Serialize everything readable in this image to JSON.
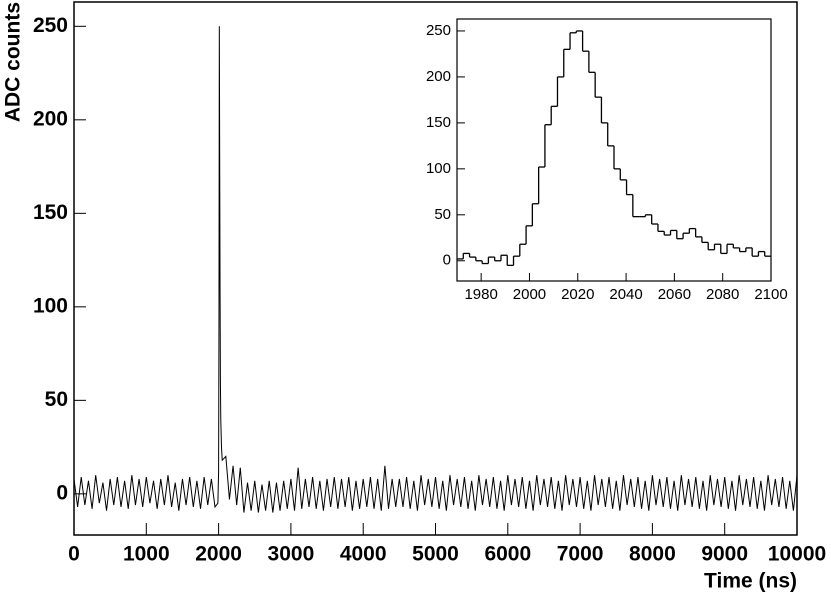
{
  "chart_data": [
    {
      "type": "line",
      "x_label": "Time (ns)",
      "y_label": "ADC counts",
      "color": "#000000",
      "xlim": [
        0,
        10000
      ],
      "ylim": [
        -22,
        263
      ],
      "xticks": [
        0,
        1000,
        2000,
        3000,
        4000,
        5000,
        6000,
        7000,
        8000,
        9000,
        10000
      ],
      "yticks": [
        0,
        50,
        100,
        150,
        200,
        250
      ],
      "x": [
        0,
        50,
        100,
        150,
        200,
        250,
        300,
        350,
        400,
        450,
        500,
        550,
        600,
        650,
        700,
        750,
        800,
        850,
        900,
        950,
        1000,
        1050,
        1100,
        1150,
        1200,
        1250,
        1300,
        1350,
        1400,
        1450,
        1500,
        1550,
        1600,
        1650,
        1700,
        1750,
        1800,
        1850,
        1900,
        1950,
        1990,
        2000,
        2005,
        2010,
        2015,
        2020,
        2025,
        2030,
        2040,
        2050,
        2100,
        2150,
        2200,
        2250,
        2300,
        2350,
        2400,
        2450,
        2500,
        2550,
        2600,
        2650,
        2700,
        2750,
        2800,
        2850,
        2900,
        2950,
        3000,
        3050,
        3100,
        3150,
        3200,
        3250,
        3300,
        3350,
        3400,
        3450,
        3500,
        3550,
        3600,
        3650,
        3700,
        3750,
        3800,
        3850,
        3900,
        3950,
        4000,
        4050,
        4100,
        4150,
        4200,
        4250,
        4300,
        4350,
        4400,
        4450,
        4500,
        4550,
        4600,
        4650,
        4700,
        4750,
        4800,
        4850,
        4900,
        4950,
        5000,
        5050,
        5100,
        5150,
        5200,
        5250,
        5300,
        5350,
        5400,
        5450,
        5500,
        5550,
        5600,
        5650,
        5700,
        5750,
        5800,
        5850,
        5900,
        5950,
        6000,
        6050,
        6100,
        6150,
        6200,
        6250,
        6300,
        6350,
        6400,
        6450,
        6500,
        6550,
        6600,
        6650,
        6700,
        6750,
        6800,
        6850,
        6900,
        6950,
        7000,
        7050,
        7100,
        7150,
        7200,
        7250,
        7300,
        7350,
        7400,
        7450,
        7500,
        7550,
        7600,
        7650,
        7700,
        7750,
        7800,
        7850,
        7900,
        7950,
        8000,
        8050,
        8100,
        8150,
        8200,
        8250,
        8300,
        8350,
        8400,
        8450,
        8500,
        8550,
        8600,
        8650,
        8700,
        8750,
        8800,
        8850,
        8900,
        8950,
        9000,
        9050,
        9100,
        9150,
        9200,
        9250,
        9300,
        9350,
        9400,
        9450,
        9500,
        9550,
        9600,
        9650,
        9700,
        9750,
        9800,
        9850,
        9900,
        9950,
        10000
      ],
      "values": [
        8,
        -7,
        9,
        -6,
        7,
        -8,
        10,
        -5,
        6,
        -9,
        8,
        -6,
        9,
        -7,
        7,
        -8,
        10,
        -6,
        8,
        -7,
        9,
        -5,
        7,
        -8,
        8,
        -6,
        10,
        -7,
        6,
        -9,
        8,
        -6,
        9,
        -7,
        7,
        -8,
        9,
        -6,
        8,
        -7,
        -5,
        12,
        90,
        250,
        180,
        110,
        60,
        40,
        25,
        18,
        20,
        -3,
        15,
        -6,
        14,
        -10,
        6,
        -9,
        7,
        -10,
        5,
        -9,
        7,
        -10,
        6,
        -9,
        7,
        -8,
        8,
        -9,
        14,
        -8,
        8,
        -7,
        9,
        -8,
        7,
        -9,
        8,
        -7,
        9,
        -8,
        8,
        -7,
        9,
        -9,
        7,
        -8,
        8,
        -7,
        9,
        -8,
        8,
        -9,
        15,
        -8,
        8,
        -7,
        8,
        -7,
        9,
        -8,
        7,
        -9,
        10,
        -6,
        8,
        -7,
        9,
        -8,
        7,
        -9,
        10,
        -6,
        8,
        -7,
        9,
        -8,
        7,
        -9,
        10,
        -6,
        8,
        -7,
        9,
        -8,
        7,
        -9,
        10,
        -6,
        8,
        -7,
        9,
        -8,
        7,
        -9,
        10,
        -6,
        8,
        -7,
        9,
        -8,
        7,
        -9,
        10,
        -6,
        8,
        -7,
        9,
        -8,
        7,
        -9,
        10,
        -6,
        8,
        -7,
        9,
        -8,
        7,
        -9,
        10,
        -6,
        8,
        -7,
        9,
        -8,
        7,
        -9,
        10,
        -6,
        8,
        -7,
        9,
        -8,
        7,
        -9,
        10,
        -6,
        8,
        -7,
        9,
        -8,
        7,
        -9,
        10,
        -6,
        8,
        -7,
        9,
        -8,
        7,
        -9,
        10,
        -6,
        8,
        -7,
        9,
        -8,
        7,
        -9,
        10,
        -6,
        8,
        -7,
        9,
        -8,
        7,
        -9,
        10
      ]
    },
    {
      "type": "histogram",
      "color": "#000000",
      "xlim": [
        1970,
        2100
      ],
      "ylim": [
        -22,
        263
      ],
      "xticks": [
        1980,
        2000,
        2020,
        2040,
        2060,
        2080,
        2100
      ],
      "yticks": [
        0,
        50,
        100,
        150,
        200,
        250
      ],
      "bins": [
        1970,
        1972.6,
        1975.2,
        1977.8,
        1980.4,
        1983,
        1985.6,
        1988.2,
        1990.8,
        1993.4,
        1996,
        1998.6,
        2001.2,
        2003.8,
        2006.4,
        2009,
        2011.6,
        2014.2,
        2016.8,
        2019.4,
        2022,
        2024.6,
        2027.2,
        2029.8,
        2032.4,
        2035,
        2037.6,
        2040.2,
        2042.8,
        2045.4,
        2048,
        2050.6,
        2053.2,
        2055.8,
        2058.4,
        2061,
        2063.6,
        2066.2,
        2068.8,
        2071.4,
        2074,
        2076.6,
        2079.2,
        2081.8,
        2084.4,
        2087,
        2089.6,
        2092.2,
        2094.8,
        2097.4,
        2100
      ],
      "values": [
        2,
        8,
        4,
        0,
        -3,
        4,
        0,
        6,
        -5,
        5,
        18,
        38,
        62,
        102,
        148,
        168,
        200,
        230,
        248,
        250,
        228,
        205,
        178,
        150,
        125,
        100,
        88,
        72,
        48,
        48,
        50,
        40,
        32,
        28,
        33,
        24,
        30,
        35,
        26,
        20,
        12,
        18,
        8,
        18,
        14,
        10,
        14,
        5,
        10,
        5
      ]
    }
  ]
}
